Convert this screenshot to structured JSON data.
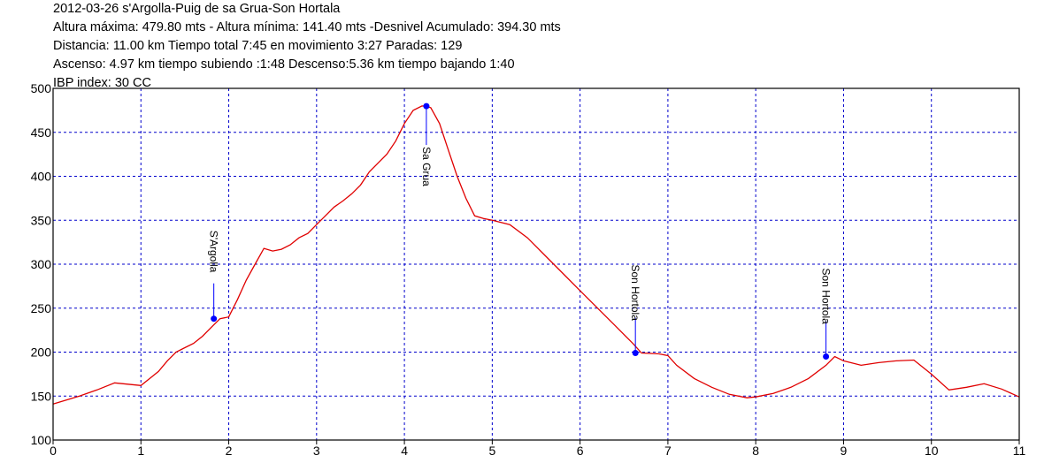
{
  "header": {
    "title": "2012-03-26 s'Argolla-Puig de sa Grua-Son Hortala",
    "line1": "Altura máxima: 479.80 mts - Altura mínima: 141.40 mts -Desnivel Acumulado: 394.30 mts",
    "line2": "Distancia: 11.00 km  Tiempo total 7:45  en movimiento 3:27 Paradas: 129",
    "line3": "Ascenso: 4.97 km  tiempo subiendo :1:48  Descenso:5.36 km tiempo bajando 1:40",
    "line4": "IBP index: 30 CC"
  },
  "chart_data": {
    "type": "line",
    "title": "2012-03-26 s'Argolla-Puig de sa Grua-Son Hortala",
    "xlabel": "",
    "ylabel": "",
    "xlim": [
      0,
      11
    ],
    "ylim": [
      100,
      500
    ],
    "x_ticks": [
      0,
      1,
      2,
      3,
      4,
      5,
      6,
      7,
      8,
      9,
      10,
      11
    ],
    "y_ticks": [
      100,
      150,
      200,
      250,
      300,
      350,
      400,
      450,
      500
    ],
    "grid": true,
    "colors": {
      "line": "#e00000",
      "grid": "#0000cc",
      "waypoint": "#0000ff"
    },
    "series": [
      {
        "x": [
          0,
          0.3,
          0.5,
          0.7,
          0.9,
          1.0,
          1.1,
          1.2,
          1.3,
          1.4,
          1.5,
          1.6,
          1.7,
          1.8,
          1.9,
          2.0,
          2.1,
          2.2,
          2.3,
          2.4,
          2.5,
          2.6,
          2.7,
          2.8,
          2.9,
          3.0,
          3.1,
          3.2,
          3.3,
          3.4,
          3.5,
          3.6,
          3.7,
          3.8,
          3.9,
          4.0,
          4.1,
          4.2,
          4.25,
          4.3,
          4.4,
          4.5,
          4.6,
          4.7,
          4.8,
          4.9,
          5.0,
          5.2,
          5.4,
          5.6,
          5.8,
          6.0,
          6.2,
          6.4,
          6.6,
          6.7,
          6.9,
          7.0,
          7.1,
          7.3,
          7.5,
          7.7,
          7.9,
          8.0,
          8.2,
          8.4,
          8.6,
          8.8,
          8.9,
          9.0,
          9.2,
          9.4,
          9.6,
          9.8,
          10.0,
          10.2,
          10.4,
          10.6,
          10.8,
          11.0
        ],
        "values": [
          141,
          150,
          157,
          165,
          163,
          162,
          170,
          178,
          190,
          200,
          205,
          210,
          218,
          228,
          238,
          240,
          260,
          282,
          300,
          318,
          315,
          317,
          322,
          330,
          335,
          345,
          355,
          365,
          372,
          380,
          390,
          405,
          415,
          425,
          440,
          460,
          475,
          480,
          479.8,
          478,
          460,
          430,
          400,
          375,
          355,
          352,
          350,
          345,
          330,
          310,
          290,
          270,
          250,
          230,
          210,
          199,
          198,
          196,
          185,
          170,
          160,
          152,
          148,
          149,
          153,
          160,
          170,
          185,
          195,
          190,
          185,
          188,
          190,
          191,
          175,
          157,
          160,
          164,
          158,
          149
        ]
      }
    ],
    "waypoints": [
      {
        "name": "S'Argolla",
        "x": 1.83,
        "y": 238
      },
      {
        "name": "Sa Grua",
        "x": 4.25,
        "y": 479.8
      },
      {
        "name": "Son Hortola",
        "x": 6.63,
        "y": 199
      },
      {
        "name": "Son Hortola",
        "x": 8.8,
        "y": 195
      }
    ]
  }
}
